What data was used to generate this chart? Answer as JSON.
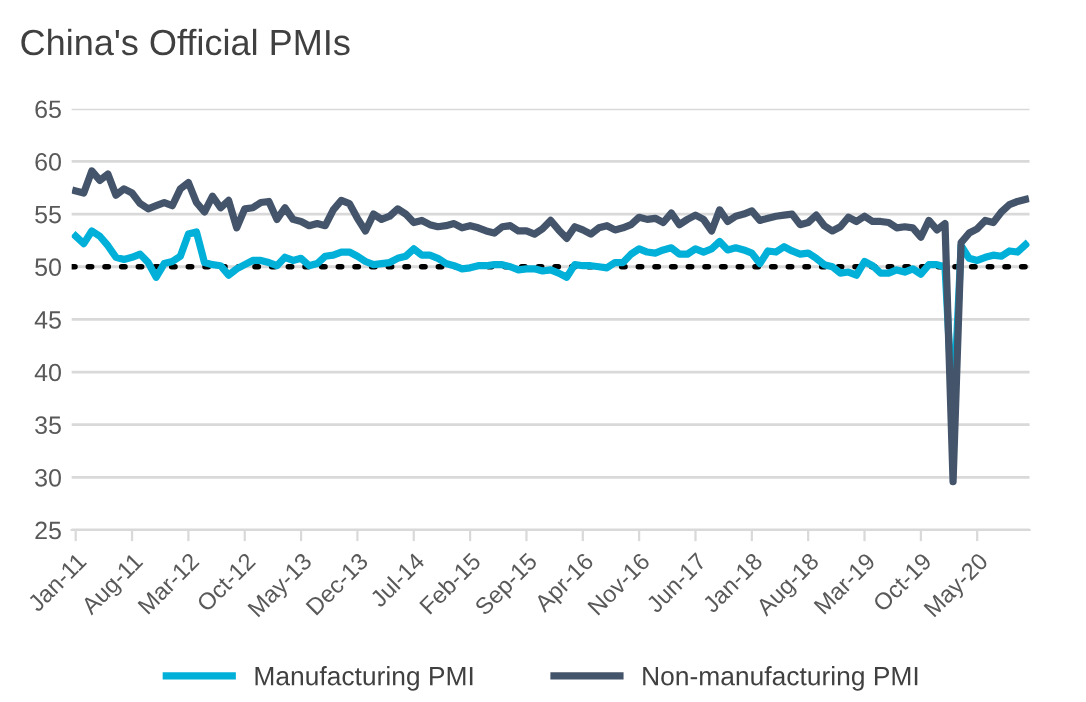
{
  "chart_data": {
    "type": "line",
    "title": "China's Official PMIs",
    "categories": [
      "Jan-11",
      null,
      null,
      null,
      null,
      null,
      null,
      "Aug-11",
      null,
      null,
      null,
      null,
      null,
      null,
      "Mar-12",
      null,
      null,
      null,
      null,
      null,
      null,
      "Oct-12",
      null,
      null,
      null,
      null,
      null,
      null,
      "May-13",
      null,
      null,
      null,
      null,
      null,
      null,
      "Dec-13",
      null,
      null,
      null,
      null,
      null,
      null,
      "Jul-14",
      null,
      null,
      null,
      null,
      null,
      null,
      "Feb-15",
      null,
      null,
      null,
      null,
      null,
      null,
      "Sep-15",
      null,
      null,
      null,
      null,
      null,
      null,
      "Apr-16",
      null,
      null,
      null,
      null,
      null,
      null,
      "Nov-16",
      null,
      null,
      null,
      null,
      null,
      null,
      "Jun-17",
      null,
      null,
      null,
      null,
      null,
      null,
      "Jan-18",
      null,
      null,
      null,
      null,
      null,
      null,
      "Aug-18",
      null,
      null,
      null,
      null,
      null,
      null,
      "Mar-19",
      null,
      null,
      null,
      null,
      null,
      null,
      "Oct-19",
      null,
      null,
      null,
      null,
      null,
      null,
      "May-20",
      null,
      null,
      null,
      null,
      null,
      null
    ],
    "series": [
      {
        "name": "Manufacturing PMI",
        "color": "#00b0d8",
        "values": [
          52.9,
          52.2,
          53.4,
          52.9,
          52.0,
          50.9,
          50.7,
          50.9,
          51.2,
          50.4,
          49.0,
          50.3,
          50.5,
          51.0,
          53.1,
          53.3,
          50.4,
          50.2,
          50.1,
          49.2,
          49.8,
          50.2,
          50.6,
          50.6,
          50.4,
          50.1,
          50.9,
          50.6,
          50.8,
          50.1,
          50.3,
          51.0,
          51.1,
          51.4,
          51.4,
          51.0,
          50.5,
          50.2,
          50.3,
          50.4,
          50.8,
          51.0,
          51.7,
          51.1,
          51.1,
          50.8,
          50.3,
          50.1,
          49.8,
          49.9,
          50.1,
          50.1,
          50.2,
          50.2,
          50.0,
          49.7,
          49.8,
          49.8,
          49.6,
          49.7,
          49.4,
          49.0,
          50.2,
          50.1,
          50.1,
          50.0,
          49.9,
          50.4,
          50.4,
          51.2,
          51.7,
          51.4,
          51.3,
          51.6,
          51.8,
          51.2,
          51.2,
          51.7,
          51.4,
          51.7,
          52.4,
          51.6,
          51.8,
          51.6,
          51.3,
          50.3,
          51.5,
          51.4,
          51.9,
          51.5,
          51.2,
          51.3,
          50.8,
          50.2,
          50.0,
          49.4,
          49.5,
          49.2,
          50.5,
          50.1,
          49.4,
          49.4,
          49.7,
          49.5,
          49.8,
          49.3,
          50.2,
          50.2,
          50.0,
          35.7,
          52.0,
          50.8,
          50.6,
          50.9,
          51.1,
          51.0,
          51.5,
          51.4,
          52.1
        ]
      },
      {
        "name": "Non-manufacturing PMI",
        "color": "#44546a",
        "values": [
          57.2,
          57.0,
          59.1,
          58.2,
          58.8,
          56.8,
          57.4,
          57.0,
          56.0,
          55.5,
          55.8,
          56.1,
          55.8,
          57.4,
          58.0,
          56.1,
          55.2,
          56.7,
          55.6,
          56.3,
          53.7,
          55.5,
          55.6,
          56.1,
          56.2,
          54.5,
          55.6,
          54.5,
          54.3,
          53.9,
          54.1,
          53.9,
          55.4,
          56.3,
          56.0,
          54.6,
          53.4,
          55.0,
          54.5,
          54.8,
          55.5,
          55.0,
          54.2,
          54.4,
          54.0,
          53.8,
          53.9,
          54.1,
          53.7,
          53.9,
          53.7,
          53.4,
          53.2,
          53.8,
          53.9,
          53.4,
          53.4,
          53.1,
          53.6,
          54.4,
          53.5,
          52.7,
          53.8,
          53.5,
          53.1,
          53.7,
          53.9,
          53.5,
          53.7,
          54.0,
          54.7,
          54.5,
          54.6,
          54.2,
          55.1,
          54.0,
          54.5,
          54.9,
          54.5,
          53.4,
          55.4,
          54.3,
          54.8,
          55.0,
          55.3,
          54.4,
          54.6,
          54.8,
          54.9,
          55.0,
          54.0,
          54.2,
          54.9,
          53.9,
          53.4,
          53.8,
          54.7,
          54.3,
          54.8,
          54.3,
          54.3,
          54.2,
          53.7,
          53.8,
          53.7,
          52.8,
          54.4,
          53.5,
          54.1,
          29.6,
          52.3,
          53.2,
          53.6,
          54.4,
          54.2,
          55.2,
          55.9,
          56.2,
          56.4
        ]
      }
    ],
    "ylim": [
      25,
      65
    ],
    "yticks": [
      25,
      30,
      35,
      40,
      45,
      50,
      55,
      60,
      65
    ],
    "grid": "y",
    "legend": "bottom",
    "marker": "none",
    "line_style": "solid",
    "ref_lines": [
      {
        "axis": "y",
        "value": 50,
        "color": "#000000",
        "line_style": "dotted"
      }
    ]
  }
}
